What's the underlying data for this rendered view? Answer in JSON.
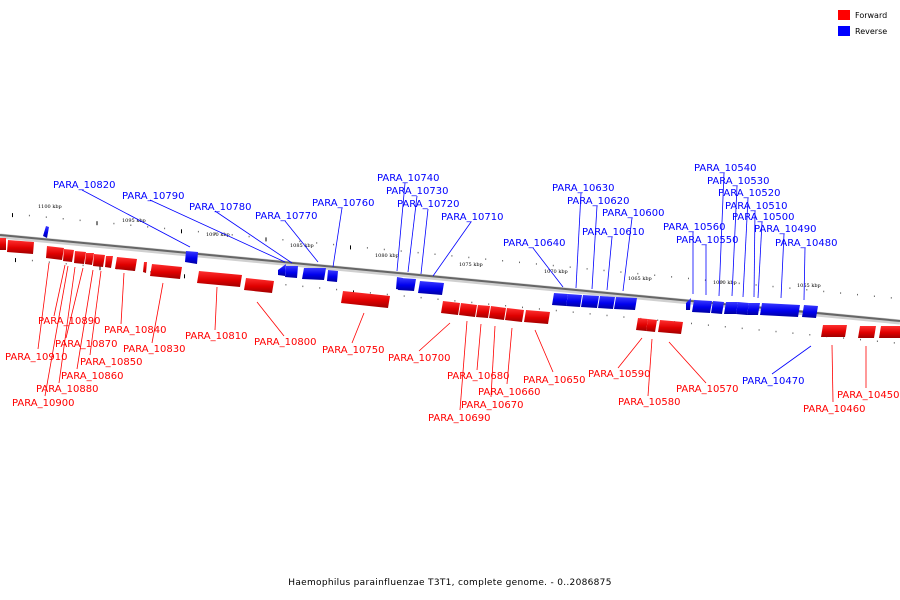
{
  "caption": "Haemophilus parainfluenzae T3T1, complete genome. - 0..2086875",
  "legend": [
    {
      "label": "Forward",
      "color": "#ff0000"
    },
    {
      "label": "Reverse",
      "color": "#0000ff"
    }
  ],
  "axis_ticks": [
    "1100 kbp",
    "1095 kbp",
    "1090 kbp",
    "1085 kbp",
    "1080 kbp",
    "1075 kbp",
    "1070 kbp",
    "1065 kbp",
    "1060 kbp",
    "1055 kbp"
  ],
  "reverse_labels": [
    "PARA_10820",
    "PARA_10790",
    "PARA_10780",
    "PARA_10770",
    "PARA_10760",
    "PARA_10740",
    "PARA_10730",
    "PARA_10720",
    "PARA_10710",
    "PARA_10640",
    "PARA_10630",
    "PARA_10620",
    "PARA_10610",
    "PARA_10600",
    "PARA_10560",
    "PARA_10550",
    "PARA_10540",
    "PARA_10530",
    "PARA_10520",
    "PARA_10510",
    "PARA_10500",
    "PARA_10490",
    "PARA_10480",
    "PARA_10470"
  ],
  "forward_labels": [
    "PARA_10890",
    "PARA_10910",
    "PARA_10870",
    "PARA_10880",
    "PARA_10900",
    "PARA_10840",
    "PARA_10830",
    "PARA_10850",
    "PARA_10860",
    "PARA_10810",
    "PARA_10800",
    "PARA_10750",
    "PARA_10700",
    "PARA_10680",
    "PARA_10690",
    "PARA_10670",
    "PARA_10660",
    "PARA_10650",
    "PARA_10590",
    "PARA_10580",
    "PARA_10570",
    "PARA_10460",
    "PARA_10450"
  ]
}
